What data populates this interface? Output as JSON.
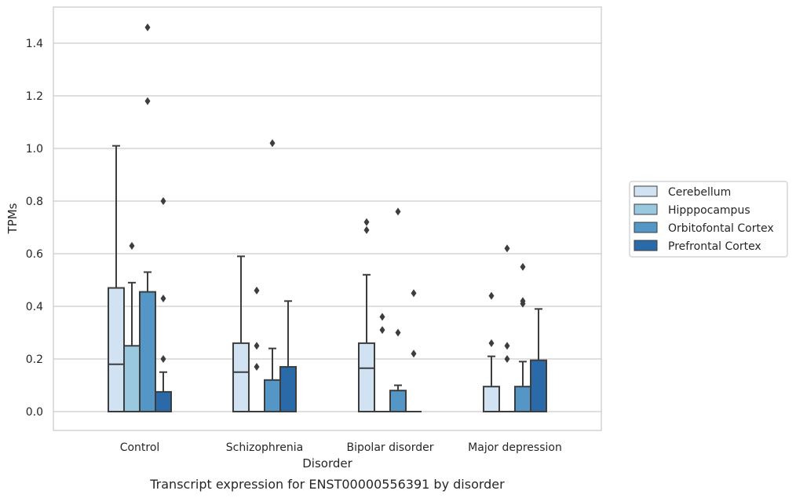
{
  "chart_data": {
    "type": "boxplot",
    "title": "",
    "caption": "Transcript expression for ENST00000556391 by disorder",
    "xlabel": "Disorder",
    "ylabel": "TPMs",
    "ylim": [
      -0.07,
      1.54
    ],
    "yticks": [
      0.0,
      0.2,
      0.4,
      0.6,
      0.8,
      1.0,
      1.2,
      1.4
    ],
    "ytick_labels": [
      "0.0",
      "0.2",
      "0.4",
      "0.6",
      "0.8",
      "1.0",
      "1.2",
      "1.4"
    ],
    "grid": "horizontal",
    "legend_position": "right",
    "categories": [
      "Control",
      "Schizophrenia",
      "Bipolar disorder",
      "Major depression"
    ],
    "series": [
      {
        "name": "Cerebellum",
        "color": "#d1e2f2",
        "boxes": [
          {
            "q1": 0.0,
            "median": 0.18,
            "q3": 0.47,
            "whisker_low": 0.0,
            "whisker_high": 1.01,
            "outliers": []
          },
          {
            "q1": 0.0,
            "median": 0.15,
            "q3": 0.26,
            "whisker_low": 0.0,
            "whisker_high": 0.59,
            "outliers": []
          },
          {
            "q1": 0.0,
            "median": 0.165,
            "q3": 0.26,
            "whisker_low": 0.0,
            "whisker_high": 0.52,
            "outliers": [
              0.69,
              0.72
            ]
          },
          {
            "q1": 0.0,
            "median": 0.0,
            "q3": 0.095,
            "whisker_low": 0.0,
            "whisker_high": 0.21,
            "outliers": [
              0.26,
              0.44
            ]
          }
        ]
      },
      {
        "name": "Hipppocampus",
        "color": "#9ac8df",
        "boxes": [
          {
            "q1": 0.0,
            "median": 0.0,
            "q3": 0.25,
            "whisker_low": 0.0,
            "whisker_high": 0.49,
            "outliers": [
              0.63
            ]
          },
          {
            "q1": 0.0,
            "median": 0.0,
            "q3": 0.0,
            "whisker_low": 0.0,
            "whisker_high": 0.0,
            "outliers": [
              0.17,
              0.25,
              0.46
            ]
          },
          {
            "q1": 0.0,
            "median": 0.0,
            "q3": 0.0,
            "whisker_low": 0.0,
            "whisker_high": 0.0,
            "outliers": [
              0.31,
              0.36
            ]
          },
          {
            "q1": 0.0,
            "median": 0.0,
            "q3": 0.0,
            "whisker_low": 0.0,
            "whisker_high": 0.0,
            "outliers": [
              0.2,
              0.25,
              0.62
            ]
          }
        ]
      },
      {
        "name": "Orbitofontal Cortex",
        "color": "#5497c6",
        "boxes": [
          {
            "q1": 0.0,
            "median": 0.0,
            "q3": 0.455,
            "whisker_low": 0.0,
            "whisker_high": 0.53,
            "outliers": [
              1.18,
              1.46
            ]
          },
          {
            "q1": 0.0,
            "median": 0.0,
            "q3": 0.12,
            "whisker_low": 0.0,
            "whisker_high": 0.24,
            "outliers": [
              1.02
            ]
          },
          {
            "q1": 0.0,
            "median": 0.0,
            "q3": 0.08,
            "whisker_low": 0.0,
            "whisker_high": 0.1,
            "outliers": [
              0.3,
              0.76
            ]
          },
          {
            "q1": 0.0,
            "median": 0.0,
            "q3": 0.095,
            "whisker_low": 0.0,
            "whisker_high": 0.19,
            "outliers": [
              0.41,
              0.42,
              0.55
            ]
          }
        ]
      },
      {
        "name": "Prefrontal Cortex",
        "color": "#2a6aa8",
        "boxes": [
          {
            "q1": 0.0,
            "median": 0.0,
            "q3": 0.075,
            "whisker_low": 0.0,
            "whisker_high": 0.15,
            "outliers": [
              0.2,
              0.43,
              0.8
            ]
          },
          {
            "q1": 0.0,
            "median": 0.0,
            "q3": 0.17,
            "whisker_low": 0.0,
            "whisker_high": 0.42,
            "outliers": []
          },
          {
            "q1": 0.0,
            "median": 0.0,
            "q3": 0.0,
            "whisker_low": 0.0,
            "whisker_high": 0.0,
            "outliers": [
              0.22,
              0.45
            ]
          },
          {
            "q1": 0.0,
            "median": 0.0,
            "q3": 0.195,
            "whisker_low": 0.0,
            "whisker_high": 0.39,
            "outliers": []
          }
        ]
      }
    ]
  }
}
